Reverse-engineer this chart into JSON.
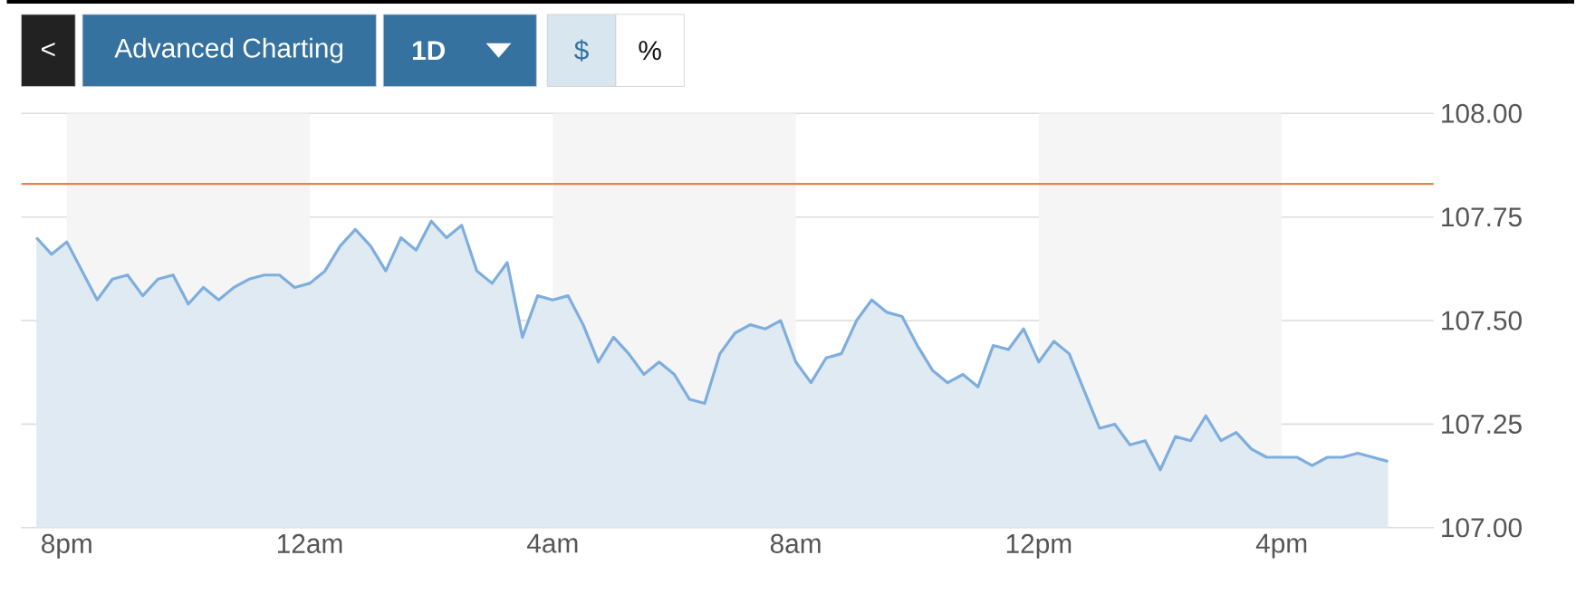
{
  "chart_data": {
    "type": "area",
    "categories": [
      null,
      null,
      "8pm",
      null,
      null,
      null,
      null,
      null,
      null,
      null,
      null,
      null,
      null,
      null,
      null,
      null,
      null,
      null,
      "12am",
      null,
      null,
      null,
      null,
      null,
      null,
      null,
      null,
      null,
      null,
      null,
      null,
      null,
      null,
      null,
      "4am",
      null,
      null,
      null,
      null,
      null,
      null,
      null,
      null,
      null,
      null,
      null,
      null,
      null,
      null,
      null,
      "8am",
      null,
      null,
      null,
      null,
      null,
      null,
      null,
      null,
      null,
      null,
      null,
      null,
      null,
      null,
      null,
      "12pm",
      null,
      null,
      null,
      null,
      null,
      null,
      null,
      null,
      null,
      null,
      null,
      null,
      null,
      null,
      null,
      "4pm",
      null,
      null,
      null,
      null,
      null,
      null,
      null
    ],
    "series": [
      {
        "color": "#7eaedd",
        "values": [
          107.7,
          107.66,
          107.69,
          107.62,
          107.55,
          107.6,
          107.61,
          107.56,
          107.6,
          107.61,
          107.54,
          107.58,
          107.55,
          107.58,
          107.6,
          107.61,
          107.61,
          107.58,
          107.59,
          107.62,
          107.68,
          107.72,
          107.68,
          107.62,
          107.7,
          107.67,
          107.74,
          107.7,
          107.73,
          107.62,
          107.59,
          107.64,
          107.46,
          107.56,
          107.55,
          107.56,
          107.49,
          107.4,
          107.46,
          107.42,
          107.37,
          107.4,
          107.37,
          107.31,
          107.3,
          107.42,
          107.47,
          107.49,
          107.48,
          107.5,
          107.4,
          107.35,
          107.41,
          107.42,
          107.5,
          107.55,
          107.52,
          107.51,
          107.44,
          107.38,
          107.35,
          107.37,
          107.34,
          107.44,
          107.43,
          107.48,
          107.4,
          107.45,
          107.42,
          107.33,
          107.24,
          107.25,
          107.2,
          107.21,
          107.14,
          107.22,
          107.21,
          107.27,
          107.21,
          107.23,
          107.19,
          107.17,
          107.17,
          107.17,
          107.15,
          107.17,
          107.17,
          107.18,
          107.17,
          107.16
        ]
      }
    ],
    "ylim": [
      107.0,
      108.0
    ],
    "yticks": [
      {
        "value": 107.0,
        "label": "107.00"
      },
      {
        "value": 107.25,
        "label": "107.25"
      },
      {
        "value": 107.5,
        "label": "107.50"
      },
      {
        "value": 107.75,
        "label": "107.75"
      },
      {
        "value": 108.0,
        "label": "108.00"
      }
    ],
    "grid": "y",
    "ref_lines": [
      {
        "axis": "y",
        "value": 107.83,
        "color": "#e8834e"
      }
    ],
    "bands": [
      {
        "axis": "x",
        "from": "8pm",
        "to": "12am",
        "color": "#f5f5f5"
      },
      {
        "axis": "x",
        "from": "4am",
        "to": "8am",
        "color": "#f5f5f5"
      },
      {
        "axis": "x",
        "from": "12pm",
        "to": "4pm",
        "color": "#f5f5f5"
      }
    ],
    "annotations": [
      "<",
      "Advanced Charting",
      "1D",
      "$",
      "%"
    ]
  }
}
